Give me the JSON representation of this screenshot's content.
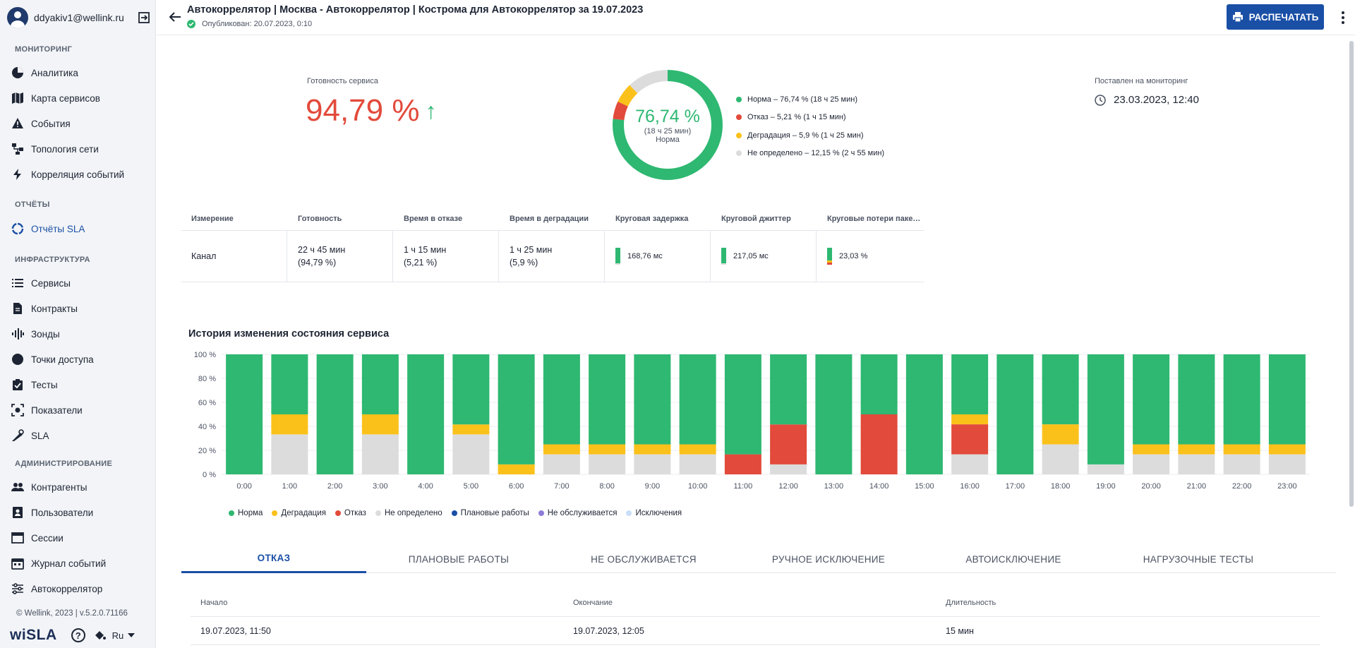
{
  "user": {
    "email": "ddyakiv1@wellink.ru"
  },
  "sidebar": {
    "sections": [
      {
        "title": "МОНИТОРИНГ"
      },
      {
        "title": "ОТЧЁТЫ"
      },
      {
        "title": "ИНФРАСТРУКТУРА"
      },
      {
        "title": "АДМИНИСТРИРОВАНИЕ"
      }
    ],
    "items": [
      {
        "label": "Аналитика",
        "icon": "pie-chart-icon"
      },
      {
        "label": "Карта сервисов",
        "icon": "map-icon"
      },
      {
        "label": "События",
        "icon": "warning-icon"
      },
      {
        "label": "Топология сети",
        "icon": "topology-icon"
      },
      {
        "label": "Корреляция событий",
        "icon": "lightning-icon"
      },
      {
        "label": "Отчёты SLA",
        "icon": "sla-report-icon"
      },
      {
        "label": "Сервисы",
        "icon": "list-icon"
      },
      {
        "label": "Контракты",
        "icon": "document-icon"
      },
      {
        "label": "Зонды",
        "icon": "probe-icon"
      },
      {
        "label": "Точки доступа",
        "icon": "access-point-icon"
      },
      {
        "label": "Тесты",
        "icon": "clipboard-check-icon"
      },
      {
        "label": "Показатели",
        "icon": "metrics-icon"
      },
      {
        "label": "SLA",
        "icon": "sla-icon"
      },
      {
        "label": "Контрагенты",
        "icon": "people-icon"
      },
      {
        "label": "Пользователи",
        "icon": "user-badge-icon"
      },
      {
        "label": "Сессии",
        "icon": "browser-icon"
      },
      {
        "label": "Журнал событий",
        "icon": "calendar-icon"
      },
      {
        "label": "Автокоррелятор",
        "icon": "sliders-icon"
      }
    ],
    "footer_version": "© Wellink, 2023 | v.5.2.0.71166",
    "logo": "wiSLA",
    "language": "Ru"
  },
  "header": {
    "title": "Автокоррелятор | Москва - Автокоррелятор | Кострома для Автокоррелятор за 19.07.2023",
    "published": "Опубликован: 20.07.2023, 0:10",
    "print_label": "РАСПЕЧАТАТЬ"
  },
  "summary": {
    "readiness_label": "Готовность сервиса",
    "readiness_value": "94,79 %",
    "readiness_arrow": "↑",
    "donut_pct": "76,74 %",
    "donut_duration": "(18 ч 25 мин)",
    "donut_state": "Норма",
    "legend": [
      {
        "label": "Норма – 76,74 % (18 ч 25 мин)",
        "color": "#2eb871",
        "pct": 76.74
      },
      {
        "label": "Отказ – 5,21 % (1 ч 15 мин)",
        "color": "#e24a3b",
        "pct": 5.21
      },
      {
        "label": "Деградация – 5,9 % (1 ч 25 мин)",
        "color": "#fbc11b",
        "pct": 5.9
      },
      {
        "label": "Не определено – 12,15 % (2 ч 55 мин)",
        "color": "#dcdcdc",
        "pct": 12.15
      }
    ],
    "monitoring_label": "Поставлен на мониторинг",
    "monitoring_value": "23.03.2023, 12:40"
  },
  "metrics": {
    "headers": [
      "Измерение",
      "Готовность",
      "Время в отказе",
      "Время в деградации",
      "Круговая задержка",
      "Круговой джиттер",
      "Круговые потери пакетов"
    ],
    "row": {
      "name": "Канал",
      "readiness": "22 ч 45 мин",
      "readiness_pct": "(94,79 %)",
      "failure": "1 ч 15 мин",
      "failure_pct": "(5,21 %)",
      "degradation": "1 ч 25 мин",
      "degradation_pct": "(5,9 %)",
      "delay": "168,76 мс",
      "jitter": "217,05 мс",
      "loss": "23,03 %"
    }
  },
  "chart_data": {
    "type": "bar",
    "stacked": true,
    "title": "История изменения состояния сервиса",
    "categories": [
      "0:00",
      "1:00",
      "2:00",
      "3:00",
      "4:00",
      "5:00",
      "6:00",
      "7:00",
      "8:00",
      "9:00",
      "10:00",
      "11:00",
      "12:00",
      "13:00",
      "14:00",
      "15:00",
      "16:00",
      "17:00",
      "18:00",
      "19:00",
      "20:00",
      "21:00",
      "22:00",
      "23:00"
    ],
    "y_ticks": [
      "0 %",
      "20 %",
      "40 %",
      "60 %",
      "80 %",
      "100 %"
    ],
    "ylim": [
      0,
      100
    ],
    "series": [
      {
        "name": "Не определено",
        "color": "#dcdcdc",
        "values": [
          0,
          33.3,
          0,
          33.3,
          0,
          33.3,
          0,
          16.7,
          16.7,
          16.7,
          16.7,
          0,
          8.3,
          0,
          0,
          0,
          16.7,
          0,
          25,
          8.3,
          16.7,
          16.7,
          16.7,
          16.7
        ]
      },
      {
        "name": "Отказ",
        "color": "#e24a3b",
        "values": [
          0,
          0,
          0,
          0,
          0,
          0,
          0,
          0,
          0,
          0,
          0,
          16.7,
          33.3,
          0,
          50,
          0,
          25,
          0,
          0,
          0,
          0,
          0,
          0,
          0
        ]
      },
      {
        "name": "Деградация",
        "color": "#fbc11b",
        "values": [
          0,
          16.7,
          0,
          16.7,
          0,
          8.3,
          8.3,
          8.3,
          8.3,
          8.3,
          8.3,
          0,
          0,
          0,
          0,
          0,
          8.3,
          0,
          16.7,
          0,
          8.3,
          8.3,
          8.3,
          8.3
        ]
      },
      {
        "name": "Норма",
        "color": "#2eb871",
        "values": [
          100,
          50,
          100,
          50,
          100,
          58.4,
          91.7,
          75,
          75,
          75,
          75,
          83.3,
          58.4,
          100,
          50,
          100,
          50,
          100,
          58.3,
          91.7,
          75,
          75,
          75,
          75
        ]
      }
    ],
    "legend": [
      {
        "label": "Норма",
        "color": "#2eb871"
      },
      {
        "label": "Деградация",
        "color": "#fbc11b"
      },
      {
        "label": "Отказ",
        "color": "#e24a3b"
      },
      {
        "label": "Не определено",
        "color": "#dcdcdc"
      },
      {
        "label": "Плановые работы",
        "color": "#1a4fa6"
      },
      {
        "label": "Не обслуживается",
        "color": "#8e7cd6"
      },
      {
        "label": "Исключения",
        "color": "#c9def7"
      }
    ]
  },
  "tabs": [
    "ОТКАЗ",
    "ПЛАНОВЫЕ РАБОТЫ",
    "НЕ ОБСЛУЖИВАЕТСЯ",
    "РУЧНОЕ ИСКЛЮЧЕНИЕ",
    "АВТОИСКЛЮЧЕНИЕ",
    "НАГРУЗОЧНЫЕ ТЕСТЫ"
  ],
  "events": {
    "headers": [
      "Начало",
      "Окончание",
      "Длительность"
    ],
    "rows": [
      {
        "start": "19.07.2023, 11:50",
        "end": "19.07.2023, 12:05",
        "duration": "15 мин"
      }
    ]
  }
}
